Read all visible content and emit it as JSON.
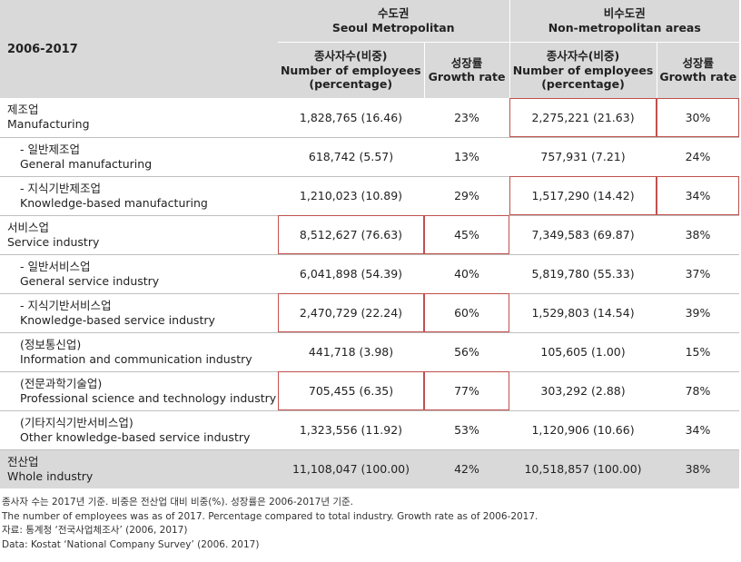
{
  "header": {
    "year_label": "2006-2017",
    "seoul": {
      "ko": "수도권",
      "en": "Seoul Metropolitan"
    },
    "non_metro": {
      "ko": "비수도권",
      "en": "Non-metropolitan areas"
    },
    "employees_col": {
      "ko": "종사자수(비중)",
      "en1": "Number of employees",
      "en2": "(percentage)"
    },
    "growth_col": {
      "ko": "성장률",
      "en": "Growth rate"
    }
  },
  "rows": [
    {
      "ko": "제조업",
      "en": "Manufacturing",
      "seoul_emp": "1,828,765 (16.46)",
      "seoul_growth": "23%",
      "non_emp": "2,275,221 (21.63)",
      "non_growth": "30%"
    },
    {
      "ko": "- 일반제조업",
      "en": "General manufacturing",
      "seoul_emp": "618,742 (5.57)",
      "seoul_growth": "13%",
      "non_emp": "757,931 (7.21)",
      "non_growth": "24%"
    },
    {
      "ko": "- 지식기반제조업",
      "en": "Knowledge-based manufacturing",
      "seoul_emp": "1,210,023 (10.89)",
      "seoul_growth": "29%",
      "non_emp": "1,517,290 (14.42)",
      "non_growth": "34%"
    },
    {
      "ko": "서비스업",
      "en": "Service industry",
      "seoul_emp": "8,512,627 (76.63)",
      "seoul_growth": "45%",
      "non_emp": "7,349,583 (69.87)",
      "non_growth": "38%"
    },
    {
      "ko": "- 일반서비스업",
      "en": "General service industry",
      "seoul_emp": "6,041,898 (54.39)",
      "seoul_growth": "40%",
      "non_emp": "5,819,780 (55.33)",
      "non_growth": "37%"
    },
    {
      "ko": "- 지식기반서비스업",
      "en": "Knowledge-based service industry",
      "seoul_emp": "2,470,729 (22.24)",
      "seoul_growth": "60%",
      "non_emp": "1,529,803 (14.54)",
      "non_growth": "39%"
    },
    {
      "ko": "(정보통신업)",
      "en": "Information and communication industry",
      "seoul_emp": "441,718 (3.98)",
      "seoul_growth": "56%",
      "non_emp": "105,605 (1.00)",
      "non_growth": "15%"
    },
    {
      "ko": "(전문과학기술업)",
      "en": "Professional science and technology industry",
      "seoul_emp": "705,455 (6.35)",
      "seoul_growth": "77%",
      "non_emp": "303,292 (2.88)",
      "non_growth": "78%"
    },
    {
      "ko": "(기타지식기반서비스업)",
      "en": "Other knowledge-based service industry",
      "seoul_emp": "1,323,556 (11.92)",
      "seoul_growth": "53%",
      "non_emp": "1,120,906 (10.66)",
      "non_growth": "34%"
    },
    {
      "ko": "전산업",
      "en": "Whole industry",
      "seoul_emp": "11,108,047 (100.00)",
      "seoul_growth": "42%",
      "non_emp": "10,518,857 (100.00)",
      "non_growth": "38%"
    }
  ],
  "notes": [
    "종사자 수는 2017년 기준. 비중은 전산업 대비 비중(%). 성장률은 2006-2017년 기준.",
    "The number of employees was as of 2017. Percentage compared to total industry. Growth rate as of 2006-2017.",
    "자료: 통계청 ‘전국사업체조사’ (2006, 2017)",
    "Data: Kostat ‘National Company Survey’ (2006. 2017)"
  ],
  "highlight_color": "#c0504d"
}
